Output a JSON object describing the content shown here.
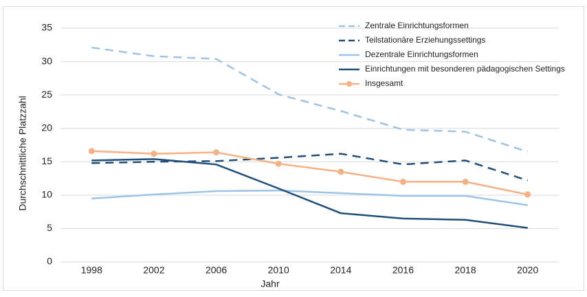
{
  "chart_data": {
    "type": "line",
    "categories": [
      "1998",
      "2002",
      "2006",
      "2010",
      "2014",
      "2016",
      "2018",
      "2020"
    ],
    "x_label": "Jahr",
    "y_label": "Durchschnittliche Platzzahl",
    "ylim": [
      0,
      35
    ],
    "yticks": [
      0,
      5,
      10,
      15,
      20,
      25,
      30,
      35
    ],
    "grid": true,
    "legend": "top-right",
    "series": [
      {
        "name": "Zentrale Einrichtungsformen",
        "color": "#9dc3e6",
        "dashed": true,
        "markers": false,
        "values": [
          32.1,
          30.8,
          30.4,
          25.1,
          22.6,
          19.8,
          19.5,
          16.5
        ]
      },
      {
        "name": "Teilstationäre Erziehungssettings",
        "color": "#1f4e79",
        "dashed": true,
        "markers": false,
        "values": [
          14.8,
          15.0,
          15.1,
          15.6,
          16.2,
          14.6,
          15.2,
          12.2
        ]
      },
      {
        "name": "Dezentrale Einrichtungsformen",
        "color": "#9dc3e6",
        "dashed": false,
        "markers": false,
        "values": [
          9.5,
          10.1,
          10.6,
          10.7,
          10.3,
          9.9,
          9.9,
          8.5
        ]
      },
      {
        "name": "Einrichtungen mit besonderen pädagogischen Settings",
        "color": "#1f4e79",
        "dashed": false,
        "markers": false,
        "values": [
          15.2,
          15.4,
          14.6,
          11.0,
          7.3,
          6.5,
          6.3,
          5.1
        ]
      },
      {
        "name": "Insgesamt",
        "color": "#f4b183",
        "dashed": false,
        "markers": true,
        "values": [
          16.6,
          16.2,
          16.4,
          14.7,
          13.5,
          12.0,
          12.0,
          10.1
        ]
      }
    ]
  }
}
